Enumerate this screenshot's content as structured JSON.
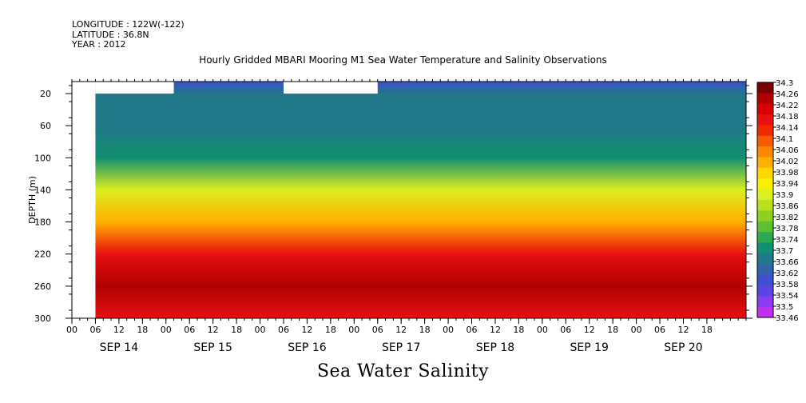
{
  "header": {
    "longitude": "LONGITUDE : 122W(-122)",
    "latitude": "LATITUDE : 36.8N",
    "year": "YEAR : 2012"
  },
  "chart_data": {
    "type": "heatmap",
    "title": "Hourly Gridded MBARI Mooring M1 Sea Water Temperature and Salinity Observations",
    "ylabel": "DEPTH (m)",
    "variable_label": "Sea Water Salinity",
    "y_ticks": [
      20,
      60,
      100,
      140,
      180,
      220,
      260,
      300
    ],
    "ylim": [
      300,
      5
    ],
    "x_hour_ticks": [
      "00",
      "06",
      "12",
      "18",
      "00",
      "06",
      "12",
      "18",
      "00",
      "06",
      "12",
      "18",
      "00",
      "06",
      "12",
      "18",
      "00",
      "06",
      "12",
      "18",
      "00",
      "06",
      "12",
      "18",
      "00",
      "06",
      "12",
      "18"
    ],
    "x_date_labels": [
      "SEP 14",
      "SEP 15",
      "SEP 16",
      "SEP 17",
      "SEP 18",
      "SEP 19",
      "SEP 20"
    ],
    "colorbar_ticks": [
      "34.3",
      "34.26",
      "34.22",
      "34.18",
      "34.14",
      "34.1",
      "34.06",
      "34.02",
      "33.98",
      "33.94",
      "33.9",
      "33.86",
      "33.82",
      "33.78",
      "33.74",
      "33.7",
      "33.66",
      "33.62",
      "33.58",
      "33.54",
      "33.5",
      "33.46"
    ],
    "colorbar_colors": [
      "#7a0000",
      "#b00000",
      "#d80000",
      "#e81010",
      "#f02a00",
      "#f85a00",
      "#fc8800",
      "#ffb000",
      "#ffd800",
      "#f8f000",
      "#dcef20",
      "#b8e020",
      "#8cd020",
      "#5cc030",
      "#2ca850",
      "#109070",
      "#207888",
      "#3064a8",
      "#3c50d0",
      "#5a44e8",
      "#8a3cf0",
      "#c030f0"
    ],
    "profile": [
      {
        "depth": 5,
        "salinity": 33.57
      },
      {
        "depth": 20,
        "salinity": 33.64
      },
      {
        "depth": 60,
        "salinity": 33.67
      },
      {
        "depth": 100,
        "salinity": 33.72
      },
      {
        "depth": 140,
        "salinity": 33.91
      },
      {
        "depth": 180,
        "salinity": 34.02
      },
      {
        "depth": 220,
        "salinity": 34.17
      },
      {
        "depth": 260,
        "salinity": 34.24
      },
      {
        "depth": 300,
        "salinity": 34.17
      }
    ],
    "data_start": "SEP 14 06",
    "data_end": "SEP 20 23"
  }
}
